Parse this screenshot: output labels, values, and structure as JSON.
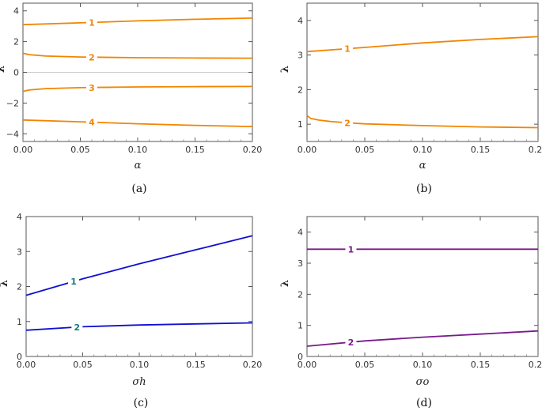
{
  "chart_data": [
    {
      "type": "line",
      "caption": "(a)",
      "xlabel": "α",
      "ylabel": "λ",
      "xlim": [
        0,
        0.2
      ],
      "ylim": [
        -4.5,
        4.5
      ],
      "xticks": [
        "0.00",
        "0.05",
        "0.10",
        "0.15",
        "0.20"
      ],
      "yticks": [
        "-4",
        "-2",
        "0",
        "2",
        "4"
      ],
      "zero_line": true,
      "color": "#f28500",
      "series": [
        {
          "name": "1",
          "label_x": 0.06,
          "points": [
            [
              0,
              3.1
            ],
            [
              0.05,
              3.22
            ],
            [
              0.1,
              3.35
            ],
            [
              0.15,
              3.45
            ],
            [
              0.2,
              3.53
            ]
          ]
        },
        {
          "name": "2",
          "label_x": 0.06,
          "points": [
            [
              0,
              1.25
            ],
            [
              0.005,
              1.15
            ],
            [
              0.02,
              1.06
            ],
            [
              0.05,
              1.0
            ],
            [
              0.1,
              0.95
            ],
            [
              0.15,
              0.93
            ],
            [
              0.2,
              0.92
            ]
          ]
        },
        {
          "name": "3",
          "label_x": 0.06,
          "points": [
            [
              0,
              -1.25
            ],
            [
              0.005,
              -1.15
            ],
            [
              0.02,
              -1.06
            ],
            [
              0.05,
              -1.0
            ],
            [
              0.1,
              -0.95
            ],
            [
              0.15,
              -0.93
            ],
            [
              0.2,
              -0.92
            ]
          ]
        },
        {
          "name": "4",
          "label_x": 0.06,
          "points": [
            [
              0,
              -3.1
            ],
            [
              0.05,
              -3.22
            ],
            [
              0.1,
              -3.35
            ],
            [
              0.15,
              -3.45
            ],
            [
              0.2,
              -3.53
            ]
          ]
        }
      ]
    },
    {
      "type": "line",
      "caption": "(b)",
      "xlabel": "α",
      "ylabel": "λ",
      "xlim": [
        0,
        0.2
      ],
      "ylim": [
        0.5,
        4.5
      ],
      "xticks": [
        "0.00",
        "0.05",
        "0.10",
        "0.15",
        "0.20"
      ],
      "yticks": [
        "1",
        "2",
        "3",
        "4"
      ],
      "zero_line": false,
      "color": "#f28500",
      "series": [
        {
          "name": "1",
          "label_x": 0.035,
          "points": [
            [
              0,
              3.1
            ],
            [
              0.05,
              3.22
            ],
            [
              0.1,
              3.35
            ],
            [
              0.15,
              3.45
            ],
            [
              0.2,
              3.53
            ]
          ]
        },
        {
          "name": "2",
          "label_x": 0.035,
          "points": [
            [
              0,
              1.25
            ],
            [
              0.003,
              1.17
            ],
            [
              0.01,
              1.12
            ],
            [
              0.02,
              1.08
            ],
            [
              0.035,
              1.04
            ],
            [
              0.05,
              1.01
            ],
            [
              0.1,
              0.96
            ],
            [
              0.15,
              0.92
            ],
            [
              0.2,
              0.9
            ]
          ]
        }
      ]
    },
    {
      "type": "line",
      "caption": "(c)",
      "xlabel": "σh",
      "ylabel": "λ",
      "xlim": [
        0,
        0.2
      ],
      "ylim": [
        0,
        4
      ],
      "xticks": [
        "0.00",
        "0.05",
        "0.10",
        "0.15",
        "0.20"
      ],
      "yticks": [
        "0",
        "1",
        "2",
        "3",
        "4"
      ],
      "zero_line": false,
      "color": "#1010d0",
      "label_color": "#1a7a7a",
      "series": [
        {
          "name": "1",
          "label_x": 0.042,
          "points": [
            [
              0,
              1.75
            ],
            [
              0.05,
              2.22
            ],
            [
              0.1,
              2.65
            ],
            [
              0.15,
              3.05
            ],
            [
              0.2,
              3.45
            ]
          ]
        },
        {
          "name": "2",
          "label_x": 0.045,
          "points": [
            [
              0,
              0.75
            ],
            [
              0.05,
              0.85
            ],
            [
              0.1,
              0.9
            ],
            [
              0.15,
              0.93
            ],
            [
              0.2,
              0.96
            ]
          ]
        }
      ]
    },
    {
      "type": "line",
      "caption": "(d)",
      "xlabel": "σo",
      "ylabel": "λ",
      "xlim": [
        0,
        0.2
      ],
      "ylim": [
        0,
        4.5
      ],
      "xticks": [
        "0.00",
        "0.05",
        "0.10",
        "0.15",
        "0.20"
      ],
      "yticks": [
        "0",
        "1",
        "2",
        "3",
        "4"
      ],
      "zero_line": false,
      "color": "#7a1a8c",
      "series": [
        {
          "name": "1",
          "label_x": 0.038,
          "points": [
            [
              0,
              3.45
            ],
            [
              0.2,
              3.45
            ]
          ]
        },
        {
          "name": "2",
          "label_x": 0.038,
          "points": [
            [
              0,
              0.33
            ],
            [
              0.05,
              0.5
            ],
            [
              0.1,
              0.62
            ],
            [
              0.15,
              0.72
            ],
            [
              0.2,
              0.82
            ]
          ]
        }
      ]
    }
  ]
}
